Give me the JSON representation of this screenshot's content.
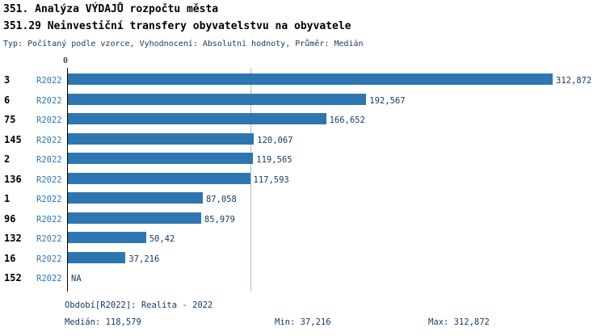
{
  "header": {
    "title1": "351. Analýza VÝDAJŮ rozpočtu města",
    "title2": "351.29 Neinvestiční transfery obyvatelstvu na obyvatele",
    "meta": "Typ: Počítaný podle vzorce, Vyhodnocení: Absolutní hodnoty, Průměr: Medián"
  },
  "chart_data": {
    "type": "bar",
    "orientation": "horizontal",
    "title": "351.29 Neinvestiční transfery obyvatelstvu na obyvatele",
    "axis_zero_label": "0",
    "xlim": [
      0,
      312872
    ],
    "xmax": 312872,
    "median_line_value": 118579,
    "bar_color": "#2e76b2",
    "categories": [
      "3",
      "6",
      "75",
      "145",
      "2",
      "136",
      "1",
      "96",
      "132",
      "16",
      "152"
    ],
    "series": [
      {
        "name": "R2022",
        "values": [
          312872,
          192567,
          166652,
          120067,
          119565,
          117593,
          87058,
          85979,
          50420,
          37216,
          null
        ]
      }
    ],
    "rows": [
      {
        "id": "3",
        "period": "R2022",
        "label": "312,872",
        "value": 312872
      },
      {
        "id": "6",
        "period": "R2022",
        "label": "192,567",
        "value": 192567
      },
      {
        "id": "75",
        "period": "R2022",
        "label": "166,652",
        "value": 166652
      },
      {
        "id": "145",
        "period": "R2022",
        "label": "120,067",
        "value": 120067
      },
      {
        "id": "2",
        "period": "R2022",
        "label": "119,565",
        "value": 119565
      },
      {
        "id": "136",
        "period": "R2022",
        "label": "117,593",
        "value": 117593
      },
      {
        "id": "1",
        "period": "R2022",
        "label": "87,058",
        "value": 87058
      },
      {
        "id": "96",
        "period": "R2022",
        "label": "85,979",
        "value": 85979
      },
      {
        "id": "132",
        "period": "R2022",
        "label": "50,42",
        "value": 50420
      },
      {
        "id": "16",
        "period": "R2022",
        "label": "37,216",
        "value": 37216
      },
      {
        "id": "152",
        "period": "R2022",
        "label": "NA",
        "value": null
      }
    ]
  },
  "footer": {
    "period_line": "Období[R2022]: Realita - 2022",
    "median": "Medián: 118,579",
    "min": "Min: 37,216",
    "max": "Max: 312,872"
  },
  "colors": {
    "bar": "#2e76b2",
    "navy_text": "#17375d",
    "median_line": "#a9c3aa",
    "axis": "#000000"
  }
}
